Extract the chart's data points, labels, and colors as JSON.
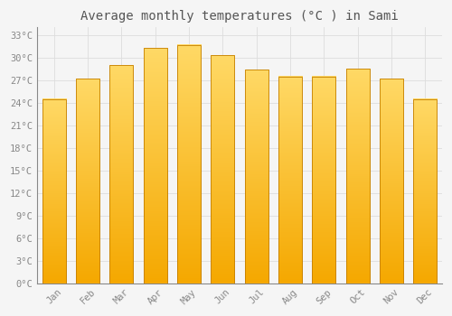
{
  "title": "Average monthly temperatures (°C ) in Sami",
  "months": [
    "Jan",
    "Feb",
    "Mar",
    "Apr",
    "May",
    "Jun",
    "Jul",
    "Aug",
    "Sep",
    "Oct",
    "Nov",
    "Dec"
  ],
  "values": [
    24.5,
    27.2,
    29.0,
    31.3,
    31.7,
    30.3,
    28.4,
    27.5,
    27.5,
    28.5,
    27.2,
    24.5
  ],
  "bar_color_bottom": "#F5A800",
  "bar_color_top": "#FFD966",
  "bar_edge_color": "#C47F00",
  "background_color": "#f5f5f5",
  "plot_bg_color": "#f5f5f5",
  "grid_color": "#dddddd",
  "ytick_labels": [
    "0°C",
    "3°C",
    "6°C",
    "9°C",
    "12°C",
    "15°C",
    "18°C",
    "21°C",
    "24°C",
    "27°C",
    "30°C",
    "33°C"
  ],
  "ytick_values": [
    0,
    3,
    6,
    9,
    12,
    15,
    18,
    21,
    24,
    27,
    30,
    33
  ],
  "ylim": [
    0,
    34
  ],
  "title_fontsize": 10,
  "tick_fontsize": 7.5,
  "font_family": "monospace"
}
